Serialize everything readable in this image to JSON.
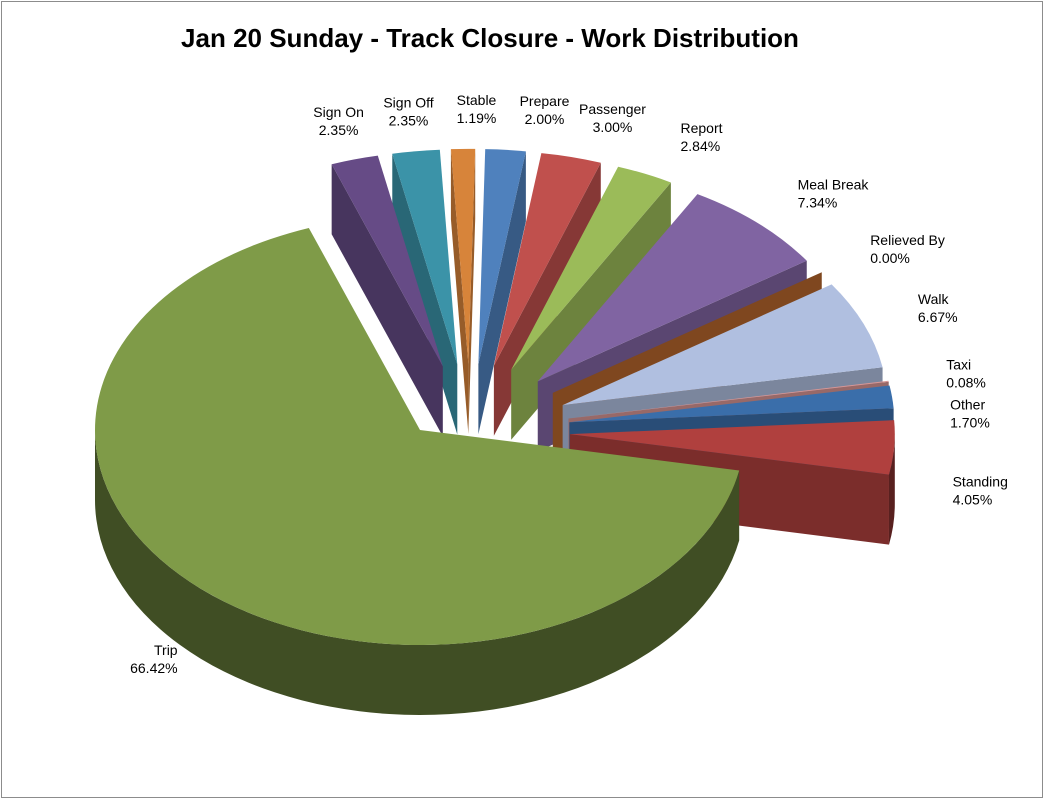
{
  "chart_data": {
    "type": "pie",
    "title": "Jan 20 Sunday - Track Closure - Work Distribution",
    "categories": [
      "Sign On",
      "Sign Off",
      "Stable",
      "Prepare",
      "Passenger",
      "Report",
      "Meal  Break",
      "Relieved  By",
      "Walk",
      "Taxi",
      "Other",
      "Standing",
      "Trip"
    ],
    "values": [
      2.35,
      2.35,
      1.19,
      2.0,
      3.0,
      2.84,
      7.34,
      0.0,
      6.67,
      0.08,
      1.7,
      4.05,
      66.42
    ],
    "value_labels": [
      "2.35%",
      "2.35%",
      "1.19%",
      "2.00%",
      "3.00%",
      "2.84%",
      "7.34%",
      "0.00%",
      "6.67%",
      "0.08%",
      "1.70%",
      "4.05%",
      "66.42%"
    ],
    "colors": [
      "#664b86",
      "#3b93a8",
      "#d7843a",
      "#4f81bd",
      "#c0504d",
      "#9bbb59",
      "#8064a2",
      "#b5652d",
      "#b0bfe0",
      "#d99694",
      "#3a6eaa",
      "#b0403e",
      "#7f9b48"
    ]
  }
}
